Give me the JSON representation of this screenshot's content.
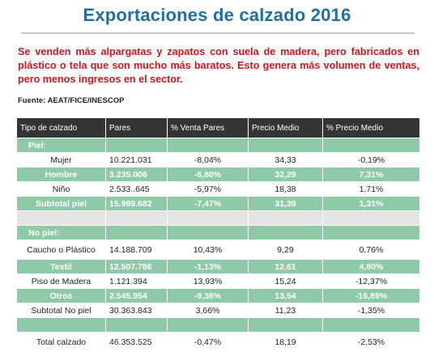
{
  "title": "Exportaciones de calzado 2016",
  "intro": "Se venden más alpargatas y zapatos con suela de madera, pero fabricados en plástico o tela que son mucho más baratos. Esto genera más volumen de ventas, pero menos ingresos en el sector.",
  "source": "Fuente: AEAT/FICE/INESCOP",
  "colors": {
    "title": "#1f6fa3",
    "intro": "#d0161c",
    "header": "#343434",
    "green": "#8ec9a8",
    "grey": "#e4e4e4"
  },
  "table": {
    "headers": [
      "Tipo de calzado",
      "Pares",
      "% Venta Pares",
      "Precio Medio",
      "% Precio Medio"
    ],
    "rows": [
      {
        "style": "green",
        "align": "left",
        "cells": [
          "Piel:",
          "",
          "",
          "",
          ""
        ]
      },
      {
        "style": "white",
        "cells": [
          "Mujer",
          "10.221.031",
          "-8,04%",
          "34,33",
          "-0,19%"
        ]
      },
      {
        "style": "green",
        "cells": [
          "Hombre",
          "3.235.006",
          "-6,80%",
          "32,29",
          "7,31%"
        ]
      },
      {
        "style": "white",
        "cells": [
          "Niño",
          "2.533..645",
          "-5,97%",
          "18,38",
          "1,71%"
        ]
      },
      {
        "style": "green",
        "cells": [
          "Subtotal piel",
          "15.989.682",
          "-7,47%",
          "31,39",
          "1,31%"
        ]
      },
      {
        "style": "grey",
        "cells": [
          "",
          "",
          "",
          "",
          ""
        ]
      },
      {
        "style": "green",
        "align": "left",
        "cells": [
          "No piel:",
          "",
          "",
          "",
          ""
        ]
      },
      {
        "style": "white",
        "tall": true,
        "cells": [
          "Caucho o Plástico",
          "14.188.709",
          "10,43%",
          "9,29",
          "0,76%"
        ]
      },
      {
        "style": "green",
        "cells": [
          "Textil",
          "12.507.786",
          "-1,13%",
          "12,61",
          "4,80%"
        ]
      },
      {
        "style": "white",
        "cells": [
          "Piso de Madera",
          "1.121.394",
          "13,93%",
          "15,24",
          "-12,37%"
        ]
      },
      {
        "style": "green",
        "cells": [
          "Otros",
          "2.545.954",
          "-9,36%",
          "13,54",
          "-16,89%"
        ]
      },
      {
        "style": "white",
        "cells": [
          "Subtotal No piel",
          "30.363.843",
          "3,66%",
          "11,23",
          "-1,35%"
        ]
      },
      {
        "style": "green",
        "cells": [
          "",
          "",
          "",
          "",
          ""
        ]
      },
      {
        "style": "white",
        "tall": true,
        "cells": [
          "Total calzado",
          "46.353.525",
          "-0,47%",
          "18,19",
          "-2,53%"
        ]
      }
    ]
  }
}
